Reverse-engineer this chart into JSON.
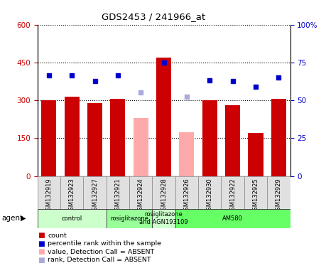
{
  "title": "GDS2453 / 241966_at",
  "samples": [
    "GSM132919",
    "GSM132923",
    "GSM132927",
    "GSM132921",
    "GSM132924",
    "GSM132928",
    "GSM132926",
    "GSM132930",
    "GSM132922",
    "GSM132925",
    "GSM132929"
  ],
  "bar_values": [
    300,
    315,
    290,
    305,
    230,
    470,
    175,
    300,
    280,
    170,
    305
  ],
  "bar_colors": [
    "#cc0000",
    "#cc0000",
    "#cc0000",
    "#cc0000",
    "#ffaaaa",
    "#cc0000",
    "#ffaaaa",
    "#cc0000",
    "#cc0000",
    "#cc0000",
    "#cc0000"
  ],
  "rank_values": [
    66.7,
    66.7,
    62.5,
    66.7,
    55.0,
    75.0,
    52.5,
    63.3,
    62.5,
    59.2,
    65.0
  ],
  "rank_colors": [
    "#0000cc",
    "#0000cc",
    "#0000cc",
    "#0000cc",
    "#aaaadd",
    "#0000cc",
    "#aaaadd",
    "#0000cc",
    "#0000cc",
    "#0000cc",
    "#0000cc"
  ],
  "ylim_left": [
    0,
    600
  ],
  "ylim_right": [
    0,
    100
  ],
  "yticks_left": [
    0,
    150,
    300,
    450,
    600
  ],
  "yticks_right": [
    0,
    25,
    50,
    75,
    100
  ],
  "group_positions": [
    {
      "start": 0,
      "end": 3,
      "label": "control",
      "color": "#ccffcc"
    },
    {
      "start": 3,
      "end": 5,
      "label": "rosiglitazone",
      "color": "#99ff99"
    },
    {
      "start": 5,
      "end": 6,
      "label": "rosiglitazone\nand AGN193109",
      "color": "#ccffcc"
    },
    {
      "start": 6,
      "end": 11,
      "label": "AM580",
      "color": "#66ff66"
    }
  ],
  "legend_colors": [
    "#cc0000",
    "#0000cc",
    "#ffaaaa",
    "#aaaadd"
  ],
  "legend_labels": [
    "count",
    "percentile rank within the sample",
    "value, Detection Call = ABSENT",
    "rank, Detection Call = ABSENT"
  ],
  "tick_color_left": "#cc0000",
  "tick_color_right": "#0000cc"
}
